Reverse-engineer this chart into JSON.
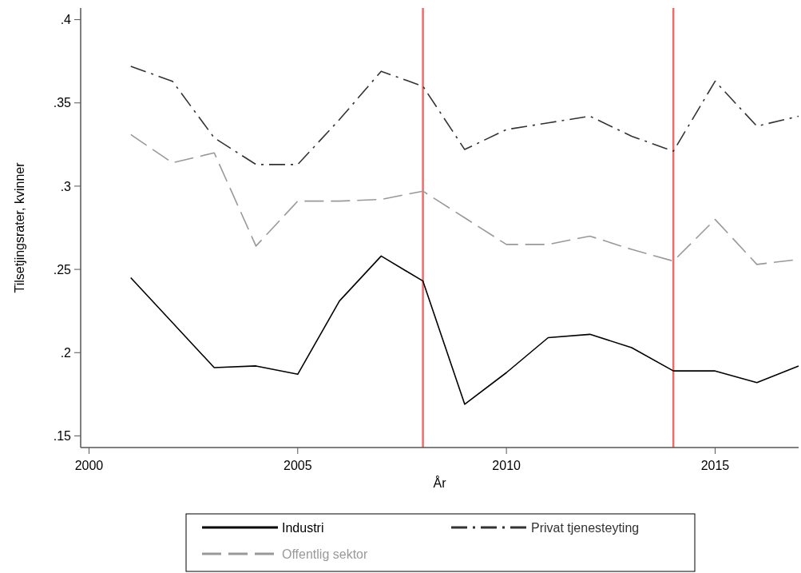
{
  "chart_data": {
    "type": "line",
    "xlabel": "År",
    "ylabel": "Tilsetjingsrater, kvinner",
    "x": [
      2001,
      2002,
      2003,
      2004,
      2005,
      2006,
      2007,
      2008,
      2009,
      2010,
      2011,
      2012,
      2013,
      2014,
      2015,
      2016,
      2017
    ],
    "series": [
      {
        "name": "Industri",
        "color": "#000000",
        "line_style": "solid",
        "values": [
          0.245,
          0.218,
          0.191,
          0.192,
          0.187,
          0.231,
          0.258,
          0.243,
          0.169,
          0.188,
          0.209,
          0.211,
          0.203,
          0.189,
          0.189,
          0.182,
          0.192
        ]
      },
      {
        "name": "Privat tjenesteyting",
        "color": "#333333",
        "line_style": "dashdot",
        "values": [
          0.372,
          0.363,
          0.329,
          0.313,
          0.313,
          0.34,
          0.369,
          0.36,
          0.322,
          0.334,
          0.338,
          0.342,
          0.33,
          0.321,
          0.363,
          0.336,
          0.342
        ]
      },
      {
        "name": "Offentlig sektor",
        "color": "#999999",
        "line_style": "dashed",
        "values": [
          0.331,
          0.314,
          0.32,
          0.264,
          0.291,
          0.291,
          0.292,
          0.297,
          0.281,
          0.265,
          0.265,
          0.27,
          0.262,
          0.255,
          0.28,
          0.253,
          0.256
        ]
      }
    ],
    "xlim": [
      1999.8,
      2017
    ],
    "ylim": [
      0.143,
      0.407
    ],
    "xticks": [
      2000,
      2005,
      2010,
      2015
    ],
    "yticks": [
      {
        "value": 0.15,
        "label": ".15"
      },
      {
        "value": 0.2,
        "label": ".2"
      },
      {
        "value": 0.25,
        "label": ".25"
      },
      {
        "value": 0.3,
        "label": ".3"
      },
      {
        "value": 0.35,
        "label": ".35"
      },
      {
        "value": 0.4,
        "label": ".4"
      }
    ],
    "ref_lines": [
      {
        "axis": "x",
        "value": 2008,
        "color": "#f26b6b"
      },
      {
        "axis": "x",
        "value": 2014,
        "color": "#f26b6b"
      }
    ],
    "grid": false,
    "legend": "bottom"
  }
}
